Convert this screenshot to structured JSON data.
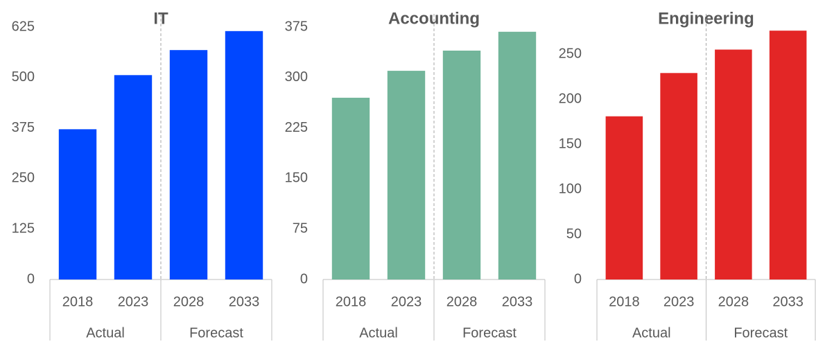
{
  "chart_data": [
    {
      "type": "bar",
      "title": "IT",
      "color": "#0047ff",
      "groups": [
        {
          "label": "Actual",
          "categories": [
            "2018",
            "2023"
          ]
        },
        {
          "label": "Forecast",
          "categories": [
            "2028",
            "2033"
          ]
        }
      ],
      "values": [
        372,
        506,
        568,
        615
      ],
      "ylim": [
        0,
        625
      ],
      "yticks": [
        0,
        125,
        250,
        375,
        500,
        625
      ]
    },
    {
      "type": "bar",
      "title": "Accounting",
      "color": "#72b59a",
      "groups": [
        {
          "label": "Actual",
          "categories": [
            "2018",
            "2023"
          ]
        },
        {
          "label": "Forecast",
          "categories": [
            "2028",
            "2033"
          ]
        }
      ],
      "values": [
        270,
        310,
        340,
        368
      ],
      "ylim": [
        0,
        375
      ],
      "yticks": [
        0,
        75,
        150,
        225,
        300,
        375
      ]
    },
    {
      "type": "bar",
      "title": "Engineering",
      "color": "#e32626",
      "groups": [
        {
          "label": "Actual",
          "categories": [
            "2018",
            "2023"
          ]
        },
        {
          "label": "Forecast",
          "categories": [
            "2028",
            "2033"
          ]
        }
      ],
      "values": [
        181,
        229,
        255,
        276
      ],
      "ylim": [
        0,
        280
      ],
      "yticks": [
        0,
        50,
        100,
        150,
        200,
        250
      ]
    }
  ]
}
